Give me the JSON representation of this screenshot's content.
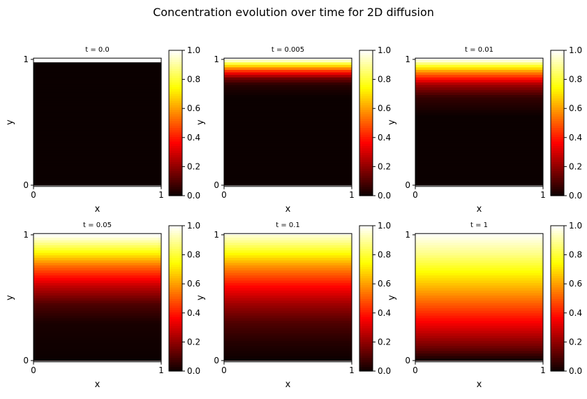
{
  "figure": {
    "suptitle": "Concentration evolution over time for 2D diffusion"
  },
  "chart_data": [
    {
      "type": "heatmap",
      "title": "t = 0.0",
      "t": 0.0,
      "xlabel": "x",
      "ylabel": "y",
      "xlim": [
        0,
        1
      ],
      "ylim": [
        0,
        1
      ],
      "xticks": [
        "0",
        "1"
      ],
      "yticks": [
        "0",
        "1"
      ],
      "colormap": "hot",
      "colorbar": {
        "range": [
          0.0,
          1.0
        ],
        "ticks": [
          "0.0",
          "0.2",
          "0.4",
          "0.6",
          "0.8",
          "1.0"
        ]
      },
      "profile": {
        "y": [
          0.0,
          0.5,
          0.97,
          0.98,
          1.0
        ],
        "c": [
          0.0,
          0.0,
          0.0,
          1.0,
          1.0
        ]
      }
    },
    {
      "type": "heatmap",
      "title": "t = 0.005",
      "t": 0.005,
      "xlabel": "x",
      "ylabel": "y",
      "xlim": [
        0,
        1
      ],
      "ylim": [
        0,
        1
      ],
      "xticks": [
        "0",
        "1"
      ],
      "yticks": [
        "0",
        "1"
      ],
      "colormap": "hot",
      "colorbar": {
        "range": [
          0.0,
          1.0
        ],
        "ticks": [
          "0.0",
          "0.2",
          "0.4",
          "0.6",
          "0.8",
          "1.0"
        ]
      },
      "profile": {
        "y": [
          0.0,
          0.7,
          0.8,
          0.85,
          0.9,
          0.95,
          1.0
        ],
        "c": [
          0.0,
          0.0,
          0.04,
          0.15,
          0.38,
          0.68,
          1.0
        ]
      }
    },
    {
      "type": "heatmap",
      "title": "t = 0.01",
      "t": 0.01,
      "xlabel": "x",
      "ylabel": "y",
      "xlim": [
        0,
        1
      ],
      "ylim": [
        0,
        1
      ],
      "xticks": [
        "0",
        "1"
      ],
      "yticks": [
        "0",
        "1"
      ],
      "colormap": "hot",
      "colorbar": {
        "range": [
          0.0,
          1.0
        ],
        "ticks": [
          "0.0",
          "0.2",
          "0.4",
          "0.6",
          "0.8",
          "1.0"
        ]
      },
      "profile": {
        "y": [
          0.0,
          0.55,
          0.7,
          0.8,
          0.9,
          1.0
        ],
        "c": [
          0.0,
          0.0,
          0.06,
          0.22,
          0.56,
          1.0
        ]
      }
    },
    {
      "type": "heatmap",
      "title": "t = 0.05",
      "t": 0.05,
      "xlabel": "x",
      "ylabel": "y",
      "xlim": [
        0,
        1
      ],
      "ylim": [
        0,
        1
      ],
      "xticks": [
        "0",
        "1"
      ],
      "yticks": [
        "0",
        "1"
      ],
      "colormap": "hot",
      "colorbar": {
        "range": [
          0.0,
          1.0
        ],
        "ticks": [
          "0.0",
          "0.2",
          "0.4",
          "0.6",
          "0.8",
          "1.0"
        ]
      },
      "profile": {
        "y": [
          0.0,
          0.3,
          0.45,
          0.6,
          0.75,
          0.9,
          1.0
        ],
        "c": [
          0.0,
          0.02,
          0.1,
          0.28,
          0.52,
          0.82,
          1.0
        ]
      }
    },
    {
      "type": "heatmap",
      "title": "t = 0.1",
      "t": 0.1,
      "xlabel": "x",
      "ylabel": "y",
      "xlim": [
        0,
        1
      ],
      "ylim": [
        0,
        1
      ],
      "xticks": [
        "0",
        "1"
      ],
      "yticks": [
        "0",
        "1"
      ],
      "colormap": "hot",
      "colorbar": {
        "range": [
          0.0,
          1.0
        ],
        "ticks": [
          "0.0",
          "0.2",
          "0.4",
          "0.6",
          "0.8",
          "1.0"
        ]
      },
      "profile": {
        "y": [
          0.0,
          0.15,
          0.3,
          0.45,
          0.6,
          0.75,
          0.9,
          1.0
        ],
        "c": [
          0.0,
          0.04,
          0.1,
          0.22,
          0.38,
          0.58,
          0.82,
          0.96
        ]
      }
    },
    {
      "type": "heatmap",
      "title": "t = 1",
      "t": 1,
      "xlabel": "x",
      "ylabel": "y",
      "xlim": [
        0,
        1
      ],
      "ylim": [
        0,
        1
      ],
      "xticks": [
        "0",
        "1"
      ],
      "yticks": [
        "0",
        "1"
      ],
      "colormap": "hot",
      "colorbar": {
        "range": [
          0.0,
          1.0
        ],
        "ticks": [
          "0.0",
          "0.2",
          "0.4",
          "0.6",
          "0.8",
          "1.0"
        ]
      },
      "profile": {
        "y": [
          0.0,
          0.1,
          0.25,
          0.4,
          0.55,
          0.7,
          0.85,
          1.0
        ],
        "c": [
          0.0,
          0.14,
          0.3,
          0.45,
          0.6,
          0.74,
          0.88,
          0.99
        ]
      }
    }
  ]
}
